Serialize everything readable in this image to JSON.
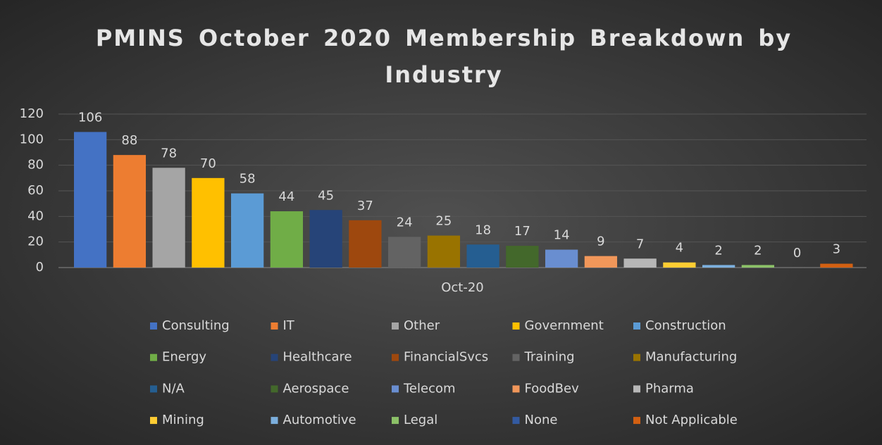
{
  "chart_data": {
    "type": "bar",
    "title": "PMINS October 2020 Membership Breakdown by Industry",
    "categories": [
      "Oct-20"
    ],
    "ylim": [
      0,
      120
    ],
    "yticks": [
      0,
      20,
      40,
      60,
      80,
      100,
      120
    ],
    "grid": true,
    "legend": "bottom",
    "series": [
      {
        "name": "Consulting",
        "color": "#4472c4",
        "values": [
          106
        ]
      },
      {
        "name": "IT",
        "color": "#ed7d31",
        "values": [
          88
        ]
      },
      {
        "name": "Other",
        "color": "#a5a5a5",
        "values": [
          78
        ]
      },
      {
        "name": "Government",
        "color": "#ffc000",
        "values": [
          70
        ]
      },
      {
        "name": "Construction",
        "color": "#5b9bd5",
        "values": [
          58
        ]
      },
      {
        "name": "Energy",
        "color": "#70ad47",
        "values": [
          44
        ]
      },
      {
        "name": "Healthcare",
        "color": "#264478",
        "values": [
          45
        ]
      },
      {
        "name": "FinancialSvcs",
        "color": "#9e480e",
        "values": [
          37
        ]
      },
      {
        "name": "Training",
        "color": "#636363",
        "values": [
          24
        ]
      },
      {
        "name": "Manufacturing",
        "color": "#997300",
        "values": [
          25
        ]
      },
      {
        "name": "N/A",
        "color": "#255e91",
        "values": [
          18
        ]
      },
      {
        "name": "Aerospace",
        "color": "#43682b",
        "values": [
          17
        ]
      },
      {
        "name": "Telecom",
        "color": "#698ed0",
        "values": [
          14
        ]
      },
      {
        "name": "FoodBev",
        "color": "#f1975a",
        "values": [
          9
        ]
      },
      {
        "name": "Pharma",
        "color": "#b7b7b7",
        "values": [
          7
        ]
      },
      {
        "name": "Mining",
        "color": "#ffcd33",
        "values": [
          4
        ]
      },
      {
        "name": "Automotive",
        "color": "#7cafdd",
        "values": [
          2
        ]
      },
      {
        "name": "Legal",
        "color": "#8cc168",
        "values": [
          2
        ]
      },
      {
        "name": "None",
        "color": "#335aa1",
        "values": [
          0
        ]
      },
      {
        "name": "Not Applicable",
        "color": "#d26012",
        "values": [
          3
        ]
      }
    ]
  }
}
